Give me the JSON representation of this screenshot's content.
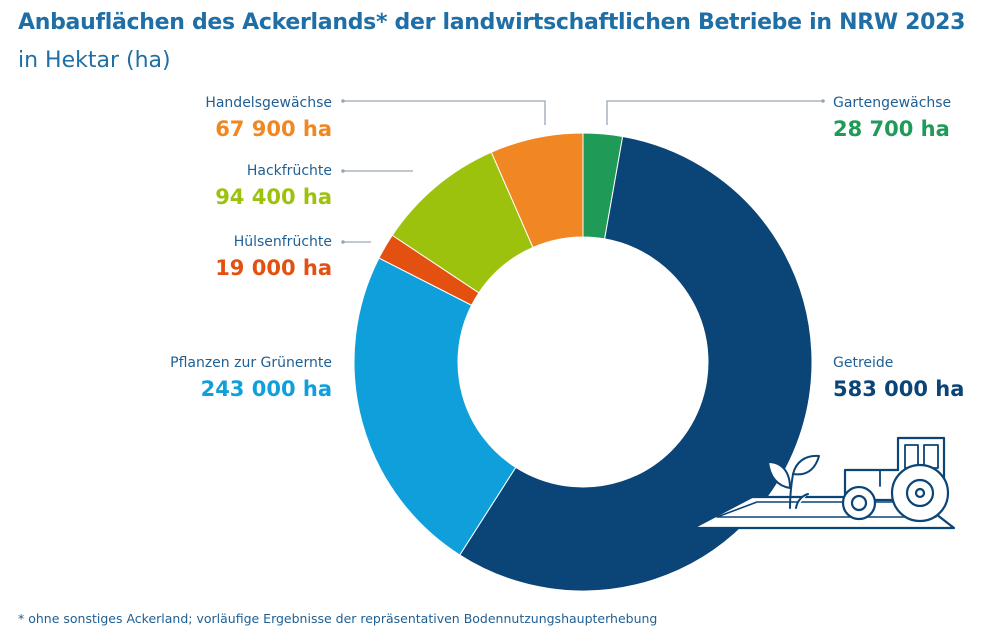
{
  "header": {
    "title": "Anbauflächen des Ackerlands* der landwirtschaftlichen Betriebe in NRW 2023",
    "subtitle": "in Hektar (ha)"
  },
  "footnote": "*  ohne sonstiges Ackerland; vorläufige Ergebnisse der repräsentativen Bodennutzungshaupterhebung",
  "chart_data": {
    "type": "pie",
    "title": "Anbauflächen des Ackerlands* der landwirtschaftlichen Betriebe in NRW 2023",
    "subtitle": "in Hektar (ha)",
    "unit": "ha",
    "slices": [
      {
        "label": "Gartengewächse",
        "value": 28700,
        "value_label": "28 700 ha",
        "color": "#1f9a57"
      },
      {
        "label": "Getreide",
        "value": 583000,
        "value_label": "583 000 ha",
        "color": "#0b4476"
      },
      {
        "label": "Pflanzen zur Grünernte",
        "value": 243000,
        "value_label": "243 000 ha",
        "color": "#0fa0dc"
      },
      {
        "label": "Hülsenfrüchte",
        "value": 19000,
        "value_label": "19 000 ha",
        "color": "#e3500f"
      },
      {
        "label": "Hackfrüchte",
        "value": 94400,
        "value_label": "94 400 ha",
        "color": "#9cc20e"
      },
      {
        "label": "Handelsgewächse",
        "value": 67900,
        "value_label": "67 900 ha",
        "color": "#f08722"
      }
    ],
    "legend": "none"
  },
  "colors": {
    "title": "#1f6fa6",
    "label": "#1f5f93",
    "leader_line": "#9aa8b5",
    "icon_line": "#0b4476"
  },
  "icons": [
    "tractor-icon",
    "plant-icon"
  ]
}
